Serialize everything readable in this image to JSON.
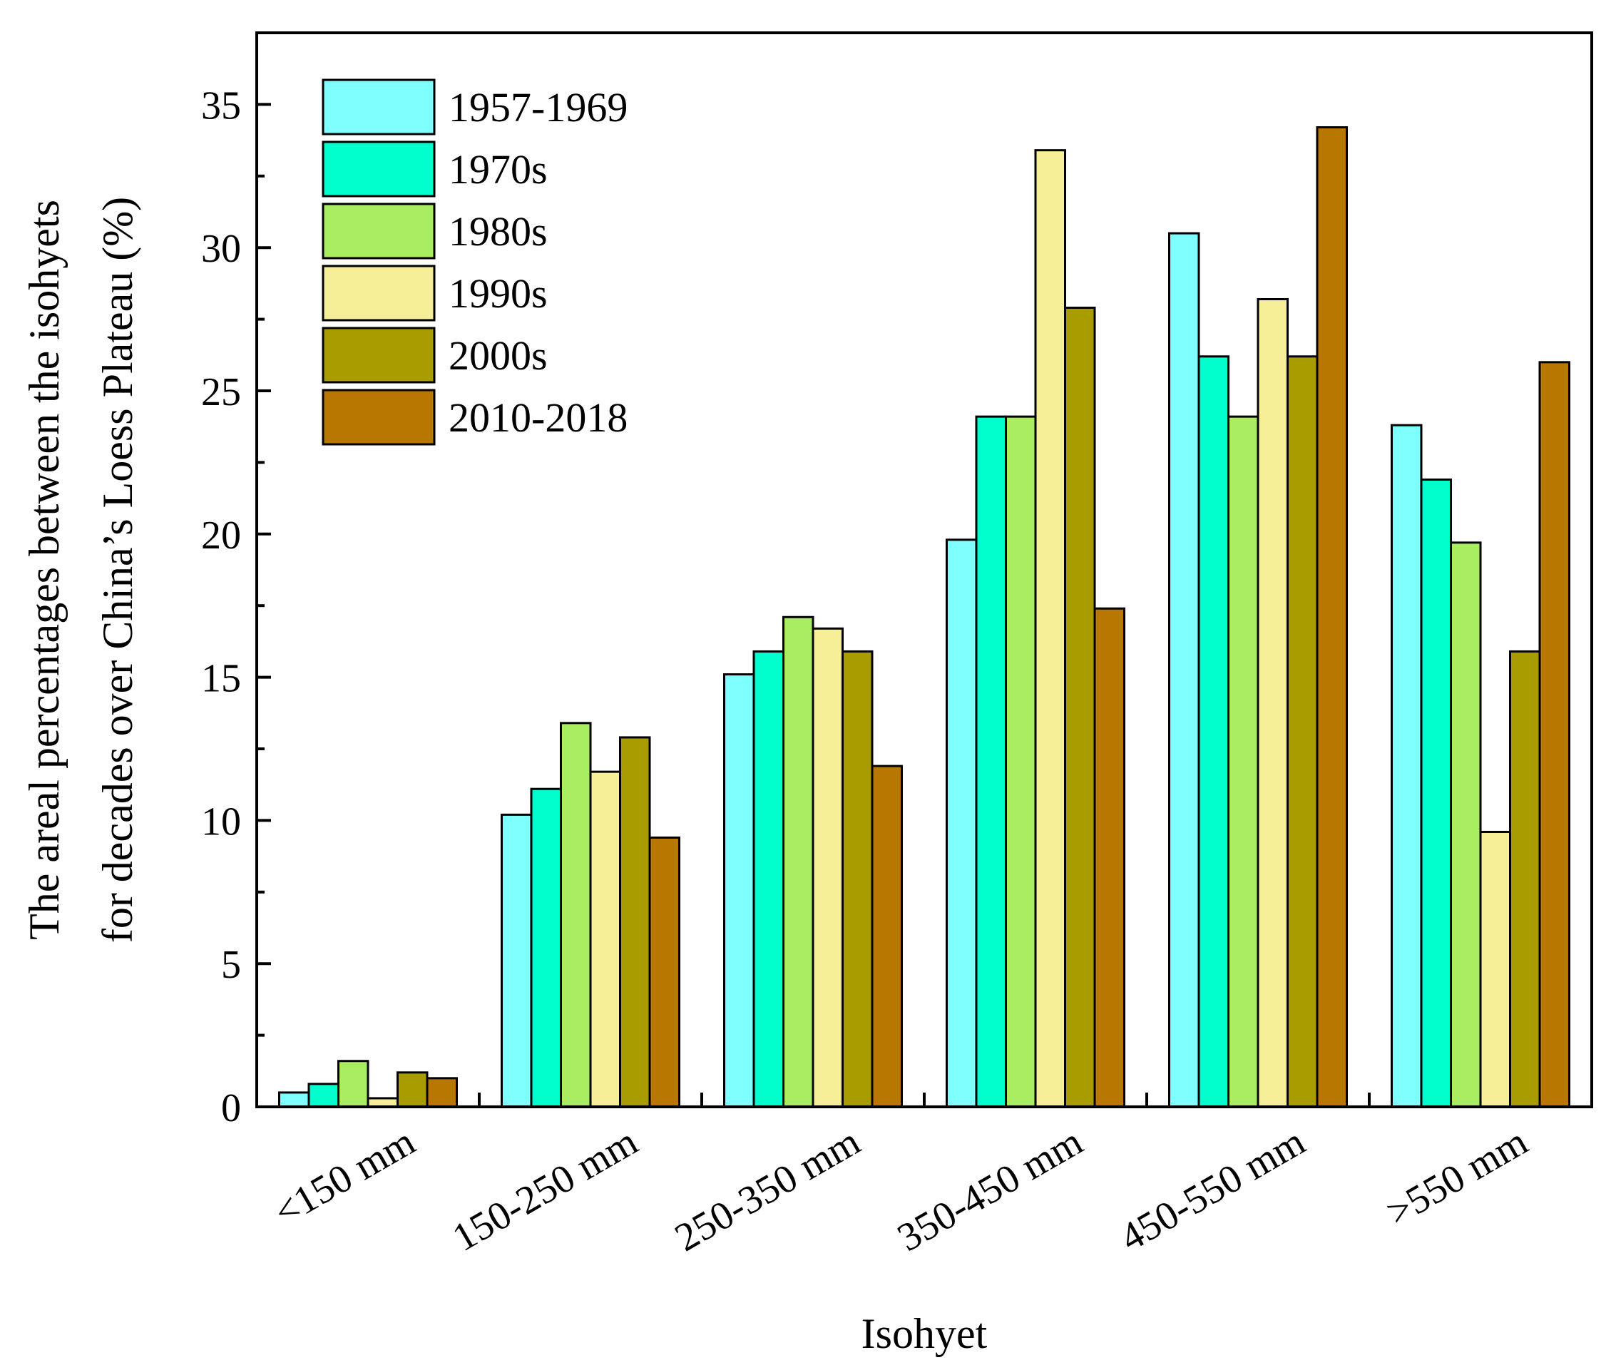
{
  "chart_data": {
    "type": "bar",
    "xlabel": "Isohyet",
    "ylabel_lines": [
      "The areal percentages between the isohyets",
      "for decades over China’s Loess Plateau (%)"
    ],
    "ylim": [
      0,
      37.5
    ],
    "yticks": [
      0,
      5,
      10,
      15,
      20,
      25,
      30,
      35
    ],
    "ytick_labels": [
      "0",
      "5",
      "10",
      "15",
      "20",
      "25",
      "30",
      "35"
    ],
    "grid": false,
    "legend_position": "top-left",
    "categories": [
      "<150 mm",
      "150-250 mm",
      "250-350 mm",
      "350-450 mm",
      "450-550 mm",
      ">550 mm"
    ],
    "series": [
      {
        "name": "1957-1969",
        "color": "#80ffff",
        "values": [
          0.5,
          10.2,
          15.1,
          19.8,
          30.5,
          23.8
        ]
      },
      {
        "name": "1970s",
        "color": "#00ffcc",
        "values": [
          0.8,
          11.1,
          15.9,
          24.1,
          26.2,
          21.9
        ]
      },
      {
        "name": "1980s",
        "color": "#a8ee60",
        "values": [
          1.6,
          13.4,
          17.1,
          24.1,
          24.1,
          19.7
        ]
      },
      {
        "name": "1990s",
        "color": "#f7ee98",
        "values": [
          0.3,
          11.7,
          16.7,
          33.4,
          28.2,
          9.6
        ]
      },
      {
        "name": "2000s",
        "color": "#a89c00",
        "values": [
          1.2,
          12.9,
          15.9,
          27.9,
          26.2,
          15.9
        ]
      },
      {
        "name": "2010-2018",
        "color": "#b87800",
        "values": [
          1.0,
          9.4,
          11.9,
          17.4,
          34.2,
          26.0
        ]
      }
    ]
  }
}
